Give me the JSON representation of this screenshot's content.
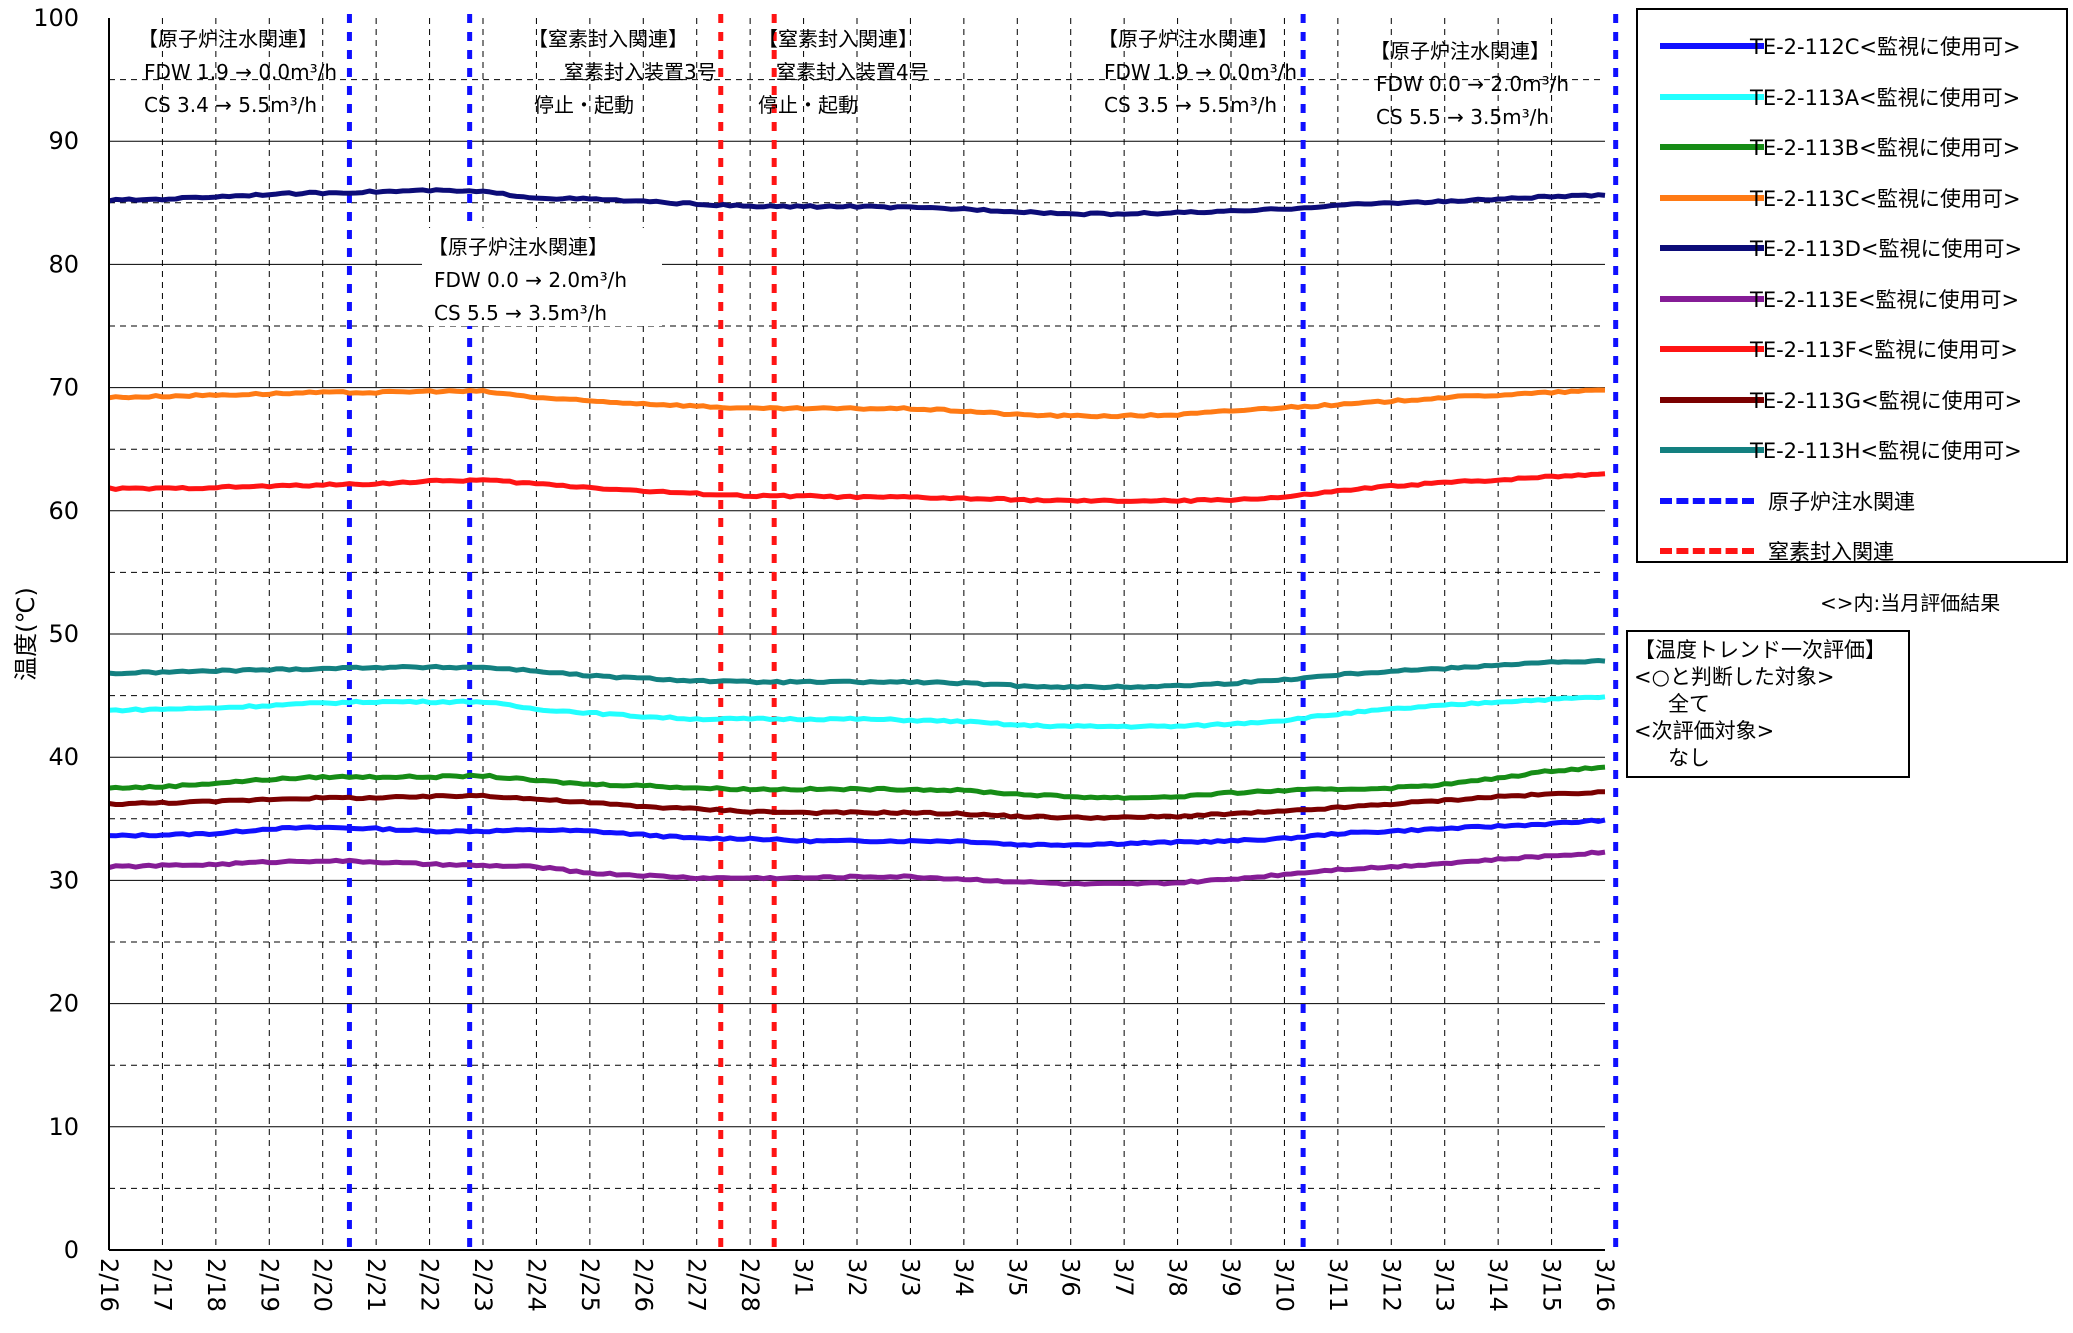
{
  "chart_data": {
    "type": "line",
    "ylabel": "温度(℃)",
    "ylim": [
      0,
      100
    ],
    "y_ticks": [
      "0",
      "10",
      "20",
      "30",
      "40",
      "50",
      "60",
      "70",
      "80",
      "90",
      "100"
    ],
    "x_ticks": [
      "2/16",
      "2/17",
      "2/18",
      "2/19",
      "2/20",
      "2/21",
      "2/22",
      "2/23",
      "2/24",
      "2/25",
      "2/26",
      "2/27",
      "2/28",
      "3/1",
      "3/2",
      "3/3",
      "3/4",
      "3/5",
      "3/6",
      "3/7",
      "3/8",
      "3/9",
      "3/10",
      "3/11",
      "3/12",
      "3/13",
      "3/14",
      "3/15",
      "3/16"
    ],
    "grid": true,
    "legend_position": "right",
    "series": [
      {
        "name": "TE-2-112C<監視に使用可>",
        "color": "#1010ff",
        "values": [
          33.6,
          33.7,
          33.8,
          34.2,
          34.3,
          34.2,
          34.0,
          34.0,
          34.1,
          34.0,
          33.7,
          33.4,
          33.4,
          33.2,
          33.2,
          33.2,
          33.2,
          32.9,
          32.9,
          33.0,
          33.1,
          33.2,
          33.4,
          33.8,
          34.0,
          34.2,
          34.4,
          34.6,
          34.9
        ]
      },
      {
        "name": "TE-2-113A<監視に使用可>",
        "color": "#22ffff",
        "values": [
          43.8,
          43.9,
          44.0,
          44.2,
          44.4,
          44.5,
          44.5,
          44.5,
          43.9,
          43.6,
          43.3,
          43.1,
          43.1,
          43.1,
          43.1,
          43.0,
          42.9,
          42.6,
          42.5,
          42.5,
          42.5,
          42.7,
          43.0,
          43.5,
          43.9,
          44.2,
          44.5,
          44.7,
          44.9
        ]
      },
      {
        "name": "TE-2-113B<監視に使用可>",
        "color": "#168c16",
        "values": [
          37.5,
          37.6,
          37.9,
          38.2,
          38.4,
          38.4,
          38.4,
          38.5,
          38.1,
          37.8,
          37.7,
          37.5,
          37.4,
          37.4,
          37.4,
          37.4,
          37.3,
          37.0,
          36.8,
          36.7,
          36.8,
          37.1,
          37.3,
          37.4,
          37.5,
          37.8,
          38.3,
          38.9,
          39.2
        ]
      },
      {
        "name": "TE-2-113C<監視に使用可>",
        "color": "#ff7a14",
        "values": [
          69.2,
          69.3,
          69.4,
          69.5,
          69.6,
          69.6,
          69.7,
          69.7,
          69.2,
          68.9,
          68.7,
          68.5,
          68.3,
          68.3,
          68.3,
          68.3,
          68.1,
          67.8,
          67.7,
          67.7,
          67.8,
          68.1,
          68.4,
          68.6,
          68.9,
          69.2,
          69.4,
          69.6,
          69.8
        ]
      },
      {
        "name": "TE-2-113D<監視に使用可>",
        "color": "#0c0c78",
        "values": [
          85.2,
          85.3,
          85.5,
          85.7,
          85.8,
          85.9,
          86.0,
          85.9,
          85.4,
          85.3,
          85.1,
          84.9,
          84.7,
          84.7,
          84.7,
          84.6,
          84.5,
          84.3,
          84.1,
          84.1,
          84.2,
          84.3,
          84.5,
          84.8,
          85.0,
          85.1,
          85.3,
          85.5,
          85.6
        ]
      },
      {
        "name": "TE-2-113E<監視に使用可>",
        "color": "#851c96",
        "values": [
          31.1,
          31.2,
          31.3,
          31.5,
          31.6,
          31.5,
          31.3,
          31.2,
          31.1,
          30.6,
          30.4,
          30.2,
          30.2,
          30.2,
          30.3,
          30.3,
          30.1,
          29.9,
          29.7,
          29.7,
          29.8,
          30.1,
          30.5,
          30.9,
          31.1,
          31.4,
          31.7,
          32.0,
          32.3
        ]
      },
      {
        "name": "TE-2-113F<監視に使用可>",
        "color": "#ff1414",
        "values": [
          61.8,
          61.8,
          61.9,
          62.0,
          62.1,
          62.2,
          62.4,
          62.5,
          62.2,
          61.9,
          61.6,
          61.4,
          61.2,
          61.2,
          61.1,
          61.1,
          61.0,
          60.9,
          60.8,
          60.8,
          60.8,
          60.9,
          61.1,
          61.6,
          62.0,
          62.3,
          62.5,
          62.8,
          63.0
        ]
      },
      {
        "name": "TE-2-113G<監視に使用可>",
        "color": "#7a0000",
        "values": [
          36.2,
          36.3,
          36.4,
          36.6,
          36.7,
          36.7,
          36.8,
          36.9,
          36.6,
          36.3,
          36.0,
          35.8,
          35.6,
          35.5,
          35.5,
          35.5,
          35.4,
          35.2,
          35.1,
          35.1,
          35.2,
          35.4,
          35.6,
          35.9,
          36.2,
          36.5,
          36.8,
          37.0,
          37.2
        ]
      },
      {
        "name": "TE-2-113H<監視に使用可>",
        "color": "#138080",
        "values": [
          46.8,
          46.9,
          47.0,
          47.1,
          47.2,
          47.3,
          47.3,
          47.3,
          47.0,
          46.6,
          46.4,
          46.2,
          46.1,
          46.1,
          46.1,
          46.1,
          46.0,
          45.8,
          45.7,
          45.7,
          45.8,
          46.0,
          46.3,
          46.7,
          47.0,
          47.2,
          47.5,
          47.7,
          47.8
        ]
      }
    ],
    "event_lines": [
      {
        "name": "原子炉注水関連",
        "color": "#1010ff",
        "x": [
          4.5,
          6.75,
          22.35,
          28.2
        ]
      },
      {
        "name": "窒素封入関連",
        "color": "#ff1414",
        "x": [
          11.45,
          12.45
        ]
      }
    ],
    "annotations": [
      {
        "lines": [
          "【原子炉注水関連】",
          "FDW 1.9 → 0.0m³/h",
          "CS 3.4 → 5.5m³/h"
        ]
      },
      {
        "lines": [
          "【窒素封入関連】",
          "窒素封入装置3号",
          "停止・起動"
        ]
      },
      {
        "lines": [
          "【窒素封入関連】",
          "窒素封入装置4号",
          "停止・起動"
        ]
      },
      {
        "lines": [
          "【原子炉注水関連】",
          "FDW 1.9 → 0.0m³/h",
          "CS 3.5 → 5.5m³/h"
        ]
      },
      {
        "lines": [
          "【原子炉注水関連】",
          "FDW 0.0 → 2.0m³/h",
          "CS 5.5 → 3.5m³/h"
        ]
      },
      {
        "lines": [
          "【原子炉注水関連】",
          "FDW 0.0 → 2.0m³/h",
          "CS 5.5 → 3.5m³/h"
        ]
      }
    ]
  },
  "legend": {
    "event_items": [
      {
        "label": "原子炉注水関連",
        "color": "#1010ff"
      },
      {
        "label": "窒素封入関連",
        "color": "#ff1414"
      }
    ],
    "note": "<>内:当月評価結果"
  },
  "evaluation": {
    "title": "【温度トレンド一次評価】",
    "lines": [
      "<○と判断した対象>",
      "全て",
      "<次評価対象>",
      "なし"
    ]
  }
}
